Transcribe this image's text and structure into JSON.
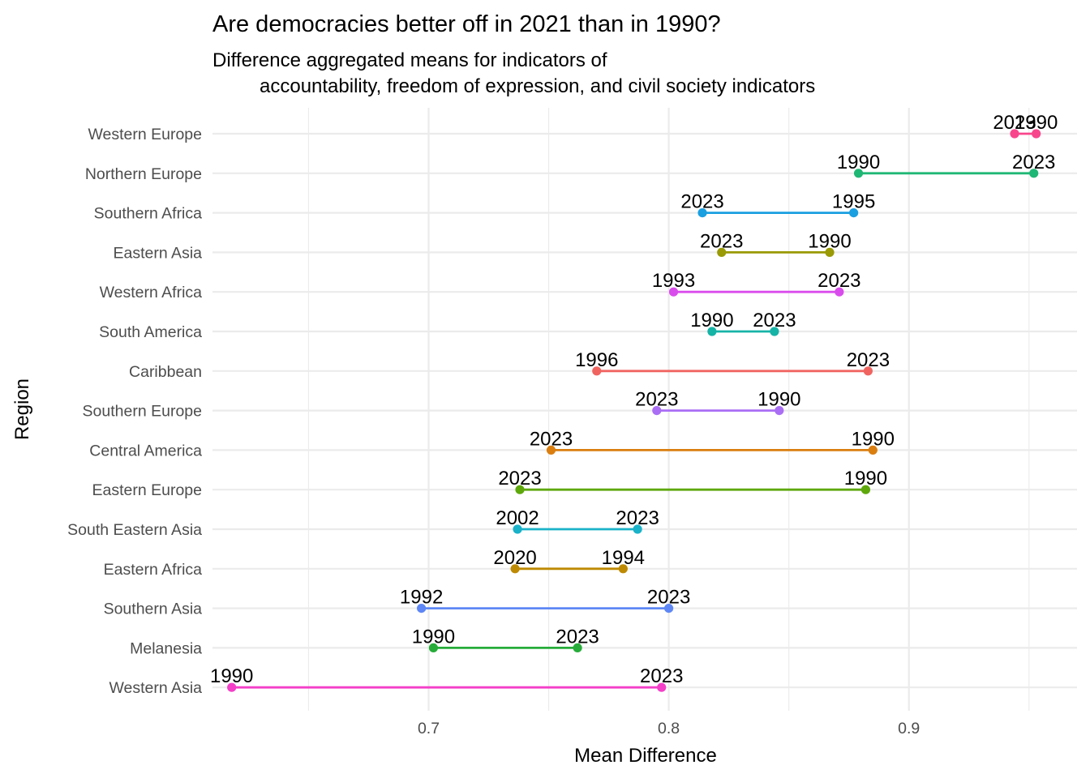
{
  "chart_data": {
    "type": "dumbbell",
    "title": "Are democracies better off in 2021 than in 1990?",
    "subtitle_lines": [
      "Difference aggregated means for indicators of",
      "accountability, freedom of expression, and civil society indicators"
    ],
    "xlabel": "Mean Difference",
    "ylabel": "Region",
    "xlim": [
      0.61,
      0.97
    ],
    "x_ticks": [
      0.7,
      0.8,
      0.9
    ],
    "x_tick_labels": [
      "0.7",
      "0.8",
      "0.9"
    ],
    "x_minor_ticks": [
      0.65,
      0.75,
      0.85,
      0.95
    ],
    "grid": true,
    "legend": "none",
    "series": [
      {
        "region": "Western Europe",
        "color": "#F8468C",
        "points": [
          {
            "year": "2023",
            "value": 0.944
          },
          {
            "year": "1990",
            "value": 0.953
          }
        ]
      },
      {
        "region": "Northern Europe",
        "color": "#1FB775",
        "points": [
          {
            "year": "1990",
            "value": 0.879
          },
          {
            "year": "2023",
            "value": 0.952
          }
        ]
      },
      {
        "region": "Southern Africa",
        "color": "#1A9FE1",
        "points": [
          {
            "year": "2023",
            "value": 0.814
          },
          {
            "year": "1995",
            "value": 0.877
          }
        ]
      },
      {
        "region": "Eastern Asia",
        "color": "#999A05",
        "points": [
          {
            "year": "2023",
            "value": 0.822
          },
          {
            "year": "1990",
            "value": 0.867
          }
        ]
      },
      {
        "region": "Western Africa",
        "color": "#D94CEC",
        "points": [
          {
            "year": "1993",
            "value": 0.802
          },
          {
            "year": "2023",
            "value": 0.871
          }
        ]
      },
      {
        "region": "South America",
        "color": "#16B3A7",
        "points": [
          {
            "year": "1990",
            "value": 0.818
          },
          {
            "year": "2023",
            "value": 0.844
          }
        ]
      },
      {
        "region": "Caribbean",
        "color": "#F06460",
        "points": [
          {
            "year": "1996",
            "value": 0.77
          },
          {
            "year": "2023",
            "value": 0.883
          }
        ]
      },
      {
        "region": "Southern Europe",
        "color": "#AA6EF5",
        "points": [
          {
            "year": "2023",
            "value": 0.795
          },
          {
            "year": "1990",
            "value": 0.846
          }
        ]
      },
      {
        "region": "Central America",
        "color": "#DA7E10",
        "points": [
          {
            "year": "2023",
            "value": 0.751
          },
          {
            "year": "1990",
            "value": 0.885
          }
        ]
      },
      {
        "region": "Eastern Europe",
        "color": "#5EA80C",
        "points": [
          {
            "year": "2023",
            "value": 0.738
          },
          {
            "year": "1990",
            "value": 0.882
          }
        ]
      },
      {
        "region": "South Eastern Asia",
        "color": "#19B2C9",
        "points": [
          {
            "year": "2002",
            "value": 0.737
          },
          {
            "year": "2023",
            "value": 0.787
          }
        ]
      },
      {
        "region": "Eastern Africa",
        "color": "#BE8A03",
        "points": [
          {
            "year": "2020",
            "value": 0.736
          },
          {
            "year": "1994",
            "value": 0.781
          }
        ]
      },
      {
        "region": "Southern Asia",
        "color": "#5E87F5",
        "points": [
          {
            "year": "1992",
            "value": 0.697
          },
          {
            "year": "2023",
            "value": 0.8
          }
        ]
      },
      {
        "region": "Melanesia",
        "color": "#27AC3A",
        "points": [
          {
            "year": "1990",
            "value": 0.702
          },
          {
            "year": "2023",
            "value": 0.762
          }
        ]
      },
      {
        "region": "Western Asia",
        "color": "#F43FC8",
        "points": [
          {
            "year": "1990",
            "value": 0.618
          },
          {
            "year": "2023",
            "value": 0.797
          }
        ]
      }
    ]
  }
}
